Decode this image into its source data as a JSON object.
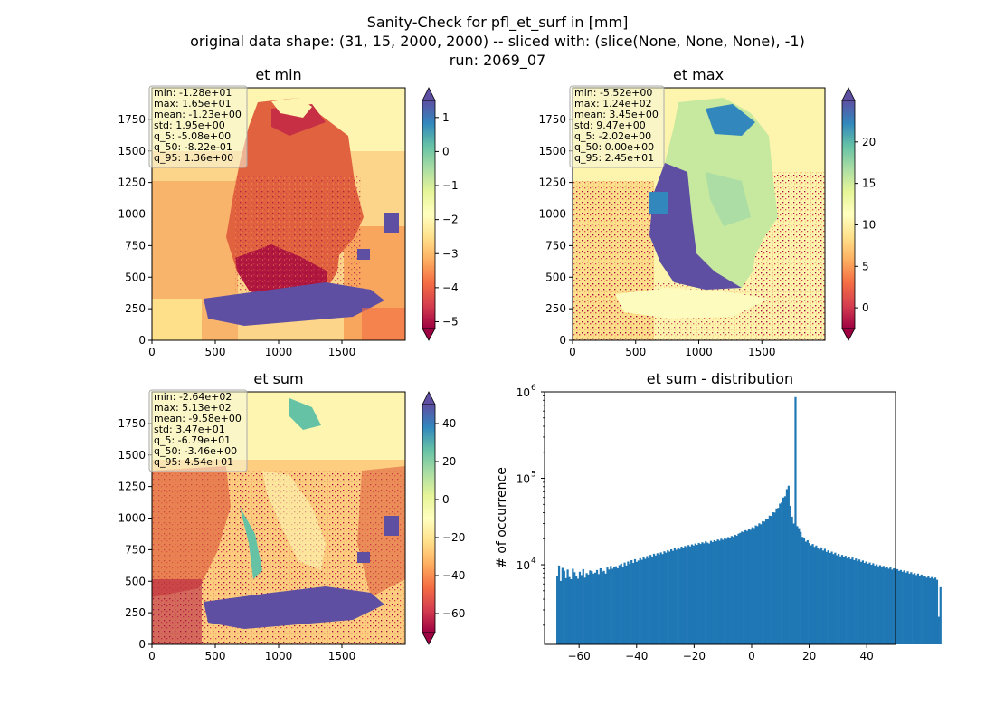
{
  "figure": {
    "title_lines": [
      "Sanity-Check for pfl_et_surf in [mm]",
      "original data shape: (31, 15, 2000, 2000) -- sliced with: (slice(None, None, None), -1)",
      "run: 2069_07"
    ]
  },
  "chart_data": [
    {
      "type": "heatmap",
      "id": "et_min",
      "title": "et min",
      "xlim": [
        0,
        2000
      ],
      "ylim": [
        0,
        2000
      ],
      "x_ticks": [
        0,
        500,
        1000,
        1500
      ],
      "y_ticks": [
        0,
        250,
        500,
        750,
        1000,
        1250,
        1500,
        1750
      ],
      "colormap": "Spectral",
      "color_range": [
        -5.2,
        1.5
      ],
      "colorbar_ticks": [
        1,
        0,
        -1,
        -2,
        -3,
        -4,
        -5
      ],
      "colorbar_tick_labels": [
        "1",
        "0",
        "−1",
        "−2",
        "−3",
        "−4",
        "−5"
      ],
      "colorbar_extend": "both",
      "stats": [
        "min: -1.28e+01",
        "max: 1.65e+01",
        "mean: -1.23e+00",
        "std: 1.95e+00",
        "q_5: -5.08e+00",
        "q_50: -8.22e-01",
        "q_95: 1.36e+00"
      ]
    },
    {
      "type": "heatmap",
      "id": "et_max",
      "title": "et max",
      "xlim": [
        0,
        2000
      ],
      "ylim": [
        0,
        2000
      ],
      "x_ticks": [
        0,
        500,
        1000,
        1500
      ],
      "y_ticks": [
        0,
        250,
        500,
        750,
        1000,
        1250,
        1500,
        1750
      ],
      "colormap": "Spectral",
      "color_range": [
        -2.5,
        25
      ],
      "colorbar_ticks": [
        20,
        15,
        10,
        5,
        0
      ],
      "colorbar_tick_labels": [
        "20",
        "15",
        "10",
        "5",
        "0"
      ],
      "colorbar_extend": "both",
      "stats": [
        "min: -5.52e+00",
        "max: 1.24e+02",
        "mean: 3.45e+00",
        "std: 9.47e+00",
        "q_5: -2.02e+00",
        "q_50: 0.00e+00",
        "q_95: 2.45e+01"
      ]
    },
    {
      "type": "heatmap",
      "id": "et_sum",
      "title": "et sum",
      "xlim": [
        0,
        2000
      ],
      "ylim": [
        0,
        2000
      ],
      "x_ticks": [
        0,
        500,
        1000,
        1500
      ],
      "y_ticks": [
        0,
        250,
        500,
        750,
        1000,
        1250,
        1500,
        1750
      ],
      "colormap": "Spectral",
      "color_range": [
        -70,
        50
      ],
      "colorbar_ticks": [
        40,
        20,
        0,
        -20,
        -40,
        -60
      ],
      "colorbar_tick_labels": [
        "40",
        "20",
        "0",
        "−20",
        "−40",
        "−60"
      ],
      "colorbar_extend": "both",
      "stats": [
        "min: -2.64e+02",
        "max: 5.13e+02",
        "mean: -9.58e+00",
        "std: 3.47e+01",
        "q_5: -6.79e+01",
        "q_50: -3.46e+00",
        "q_95: 4.54e+01"
      ]
    },
    {
      "type": "bar",
      "id": "et_sum_distribution",
      "title": "et sum - distribution",
      "ylabel": "# of occurrence",
      "xlabel": "",
      "y_scale": "log",
      "bar_color": "#1f77b4",
      "xlim": [
        -72,
        50
      ],
      "ylim": [
        1200,
        1000000
      ],
      "x_ticks": [
        -60,
        -40,
        -20,
        0,
        20,
        40
      ],
      "x_tick_labels": [
        "−60",
        "−40",
        "−20",
        "0",
        "20",
        "40"
      ],
      "y_ticks": [
        10000,
        100000,
        1000000
      ],
      "y_tick_labels": [
        [
          "10",
          "4"
        ],
        [
          "10",
          "5"
        ],
        [
          "10",
          "6"
        ]
      ],
      "bin_start": -67.9,
      "bin_width": 0.6,
      "values": [
        7500,
        9800,
        6500,
        9200,
        8500,
        7000,
        8800,
        7200,
        6800,
        9000,
        8200,
        7400,
        6900,
        8300,
        7600,
        8900,
        7100,
        8000,
        7700,
        8600,
        8400,
        7900,
        8100,
        8700,
        7800,
        9100,
        8300,
        8500,
        7900,
        9300,
        8800,
        9700,
        9000,
        9400,
        9600,
        9100,
        9900,
        10300,
        9500,
        10600,
        9800,
        10900,
        10200,
        11300,
        10500,
        11600,
        10800,
        11200,
        11900,
        11400,
        12200,
        11700,
        12600,
        11900,
        13000,
        12300,
        13400,
        12800,
        13600,
        13100,
        13900,
        13300,
        14300,
        13800,
        14700,
        14200,
        15100,
        14500,
        15500,
        14900,
        15800,
        15200,
        16200,
        15600,
        16500,
        16000,
        16900,
        16300,
        17200,
        16700,
        17600,
        17000,
        17900,
        17400,
        18200,
        17700,
        18600,
        18000,
        17600,
        18900,
        18300,
        19200,
        18700,
        19600,
        19000,
        20000,
        19400,
        20400,
        19900,
        20900,
        20300,
        21500,
        21000,
        22200,
        21700,
        22900,
        23400,
        24200,
        23800,
        25100,
        24600,
        26000,
        25400,
        27200,
        26600,
        28500,
        28000,
        30100,
        29400,
        31900,
        31600,
        34200,
        33800,
        37000,
        36700,
        40500,
        40200,
        44800,
        45500,
        51000,
        52500,
        60000,
        62000,
        75000,
        82000,
        48000,
        36000,
        30000,
        870000,
        28000,
        26500,
        24000,
        21000,
        20500,
        18500,
        19200,
        17800,
        16800,
        17400,
        16100,
        16700,
        15600,
        15000,
        15900,
        14600,
        15300,
        14100,
        14700,
        13700,
        14200,
        13300,
        13800,
        12900,
        13400,
        12500,
        13000,
        12200,
        12700,
        11900,
        12400,
        11600,
        12100,
        11300,
        11800,
        11000,
        11500,
        10800,
        11200,
        10500,
        10900,
        10300,
        10600,
        10000,
        10400,
        9800,
        10100,
        9600,
        9900,
        9400,
        9700,
        9200,
        9500,
        9000,
        9300,
        8800,
        9100,
        8600,
        8900,
        8500,
        8700,
        8300,
        8600,
        8100,
        8400,
        7900,
        8200,
        7800,
        8000,
        7600,
        7900,
        7400,
        7700,
        7300,
        7500,
        7100,
        7400,
        7000,
        7200,
        6900,
        7100,
        6700,
        2500,
        5500
      ]
    }
  ]
}
